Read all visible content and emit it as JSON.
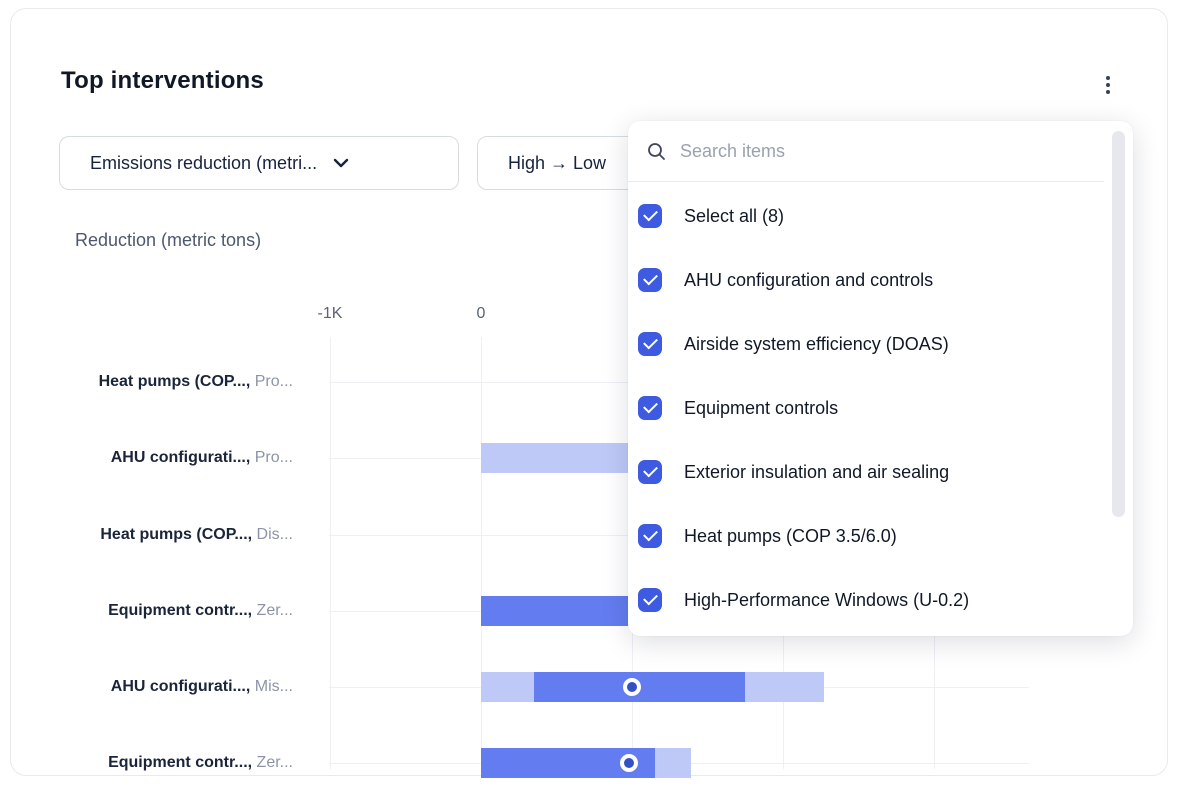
{
  "card": {
    "title": "Top interventions"
  },
  "menu": {
    "kebab_icon": "vertical-three-dots"
  },
  "filters": {
    "metric_select": {
      "value": "Emissions reduction (metri...",
      "icon": "chevron-down"
    },
    "sort_select": {
      "value": "High → Low"
    }
  },
  "dropdown_panel": {
    "search_placeholder": "Search items",
    "search_icon": "magnifier",
    "items": [
      {
        "label": "Select all (8)",
        "checked": true
      },
      {
        "label": "AHU configuration and controls",
        "checked": true
      },
      {
        "label": "Airside system efficiency (DOAS)",
        "checked": true
      },
      {
        "label": "Equipment controls",
        "checked": true
      },
      {
        "label": "Exterior insulation and air sealing",
        "checked": true
      },
      {
        "label": "Heat pumps (COP 3.5/6.0)",
        "checked": true
      },
      {
        "label": "High-Performance Windows (U-0.2)",
        "checked": true
      }
    ]
  },
  "chart_data": {
    "type": "bar",
    "orientation": "horizontal",
    "axis_title": "Reduction (metric tons)",
    "x_ticks": [
      {
        "label": "-1K",
        "value": -1
      },
      {
        "label": "0",
        "value": 0
      }
    ],
    "gridline_values": [
      -1,
      0,
      1,
      2,
      3
    ],
    "x_unit_label": "K metric tons",
    "rows": [
      {
        "label": "Heat pumps (COP...,",
        "sub": "Pro...",
        "segments": [],
        "marker": null
      },
      {
        "label": "AHU configurati...,",
        "sub": "Pro...",
        "segments": [
          {
            "from": 0,
            "to": 1.2,
            "tone": "light"
          }
        ],
        "marker": null
      },
      {
        "label": "Heat pumps (COP...,",
        "sub": "Dis...",
        "segments": [],
        "marker": null
      },
      {
        "label": "Equipment contr...,",
        "sub": "Zer...",
        "segments": [
          {
            "from": 0,
            "to": 1.0,
            "tone": "solid"
          }
        ],
        "marker": null
      },
      {
        "label": "AHU configurati...,",
        "sub": "Mis...",
        "segments": [
          {
            "from": 0,
            "to": 0.35,
            "tone": "light"
          },
          {
            "from": 0.35,
            "to": 1.75,
            "tone": "solid"
          },
          {
            "from": 1.75,
            "to": 2.27,
            "tone": "light"
          }
        ],
        "marker": 1.0
      },
      {
        "label": "Equipment contr...,",
        "sub": "Zer...",
        "segments": [
          {
            "from": 0,
            "to": 1.15,
            "tone": "solid"
          },
          {
            "from": 1.15,
            "to": 1.39,
            "tone": "light"
          }
        ],
        "marker": 0.98
      }
    ]
  },
  "colors": {
    "bar_solid": "#637cf0",
    "bar_light": "#bec9f8",
    "marker_inner": "#3350c8",
    "checkbox_blue": "#3d5ae0",
    "title_text": "#101828",
    "gridline": "#eef0f4"
  }
}
